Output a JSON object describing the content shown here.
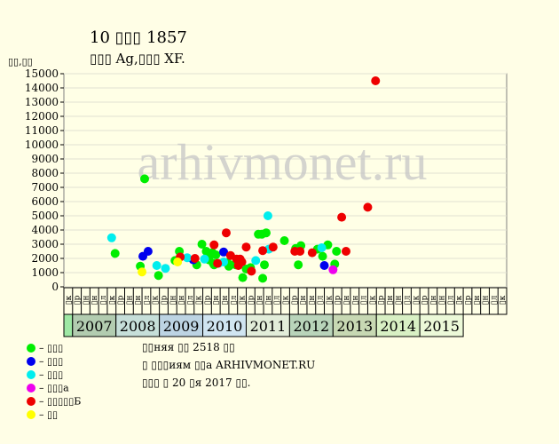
{
  "title": "10 ▯▯▯ 1857",
  "subtitle": "▯▯▯ Ag,▯▯▯ XF.",
  "y_unit": "▯▯,▯▯",
  "watermark": "arhivmonet.ru",
  "notes": [
    "▯▯няя ▯▯ 2518 ▯▯",
    "▯ ▯▯▯иям ▯▯а ARHIVMONET.RU",
    "▯▯▯ ▯ 20 ▯я 2017 ▯▯."
  ],
  "legend": [
    {
      "label": "– ▯▯▯",
      "color": "#00ee00"
    },
    {
      "label": "– ▯▯▯",
      "color": "#0000ee"
    },
    {
      "label": "– ▯▯▯",
      "color": "#00eeee"
    },
    {
      "label": "– ▯▯▯а",
      "color": "#ee00ee"
    },
    {
      "label": "– ▯▯▯▯▯Б",
      "color": "#ee0000"
    },
    {
      "label": "– ▯▯",
      "color": "#ffff00"
    }
  ],
  "chart_data": {
    "type": "scatter",
    "title": "10 ▯▯▯ 1857",
    "subtitle": "▯▯▯ Ag,▯▯▯ XF.",
    "ylabel": "▯▯,▯▯",
    "ylim": [
      0,
      15000
    ],
    "yticks": [
      0,
      1000,
      2000,
      3000,
      4000,
      5000,
      6000,
      7000,
      8000,
      9000,
      10000,
      11000,
      12000,
      13000,
      14000,
      15000
    ],
    "grid": true,
    "x_cells": [
      "▯к",
      "▯р",
      "▯н",
      "▯н",
      "▯л",
      "▯к",
      "▯р",
      "▯н",
      "▯н",
      "▯л",
      "▯к",
      "▯р",
      "▯н",
      "▯н",
      "▯л",
      "▯к",
      "▯р",
      "▯н",
      "▯н",
      "▯л",
      "▯к",
      "▯р",
      "▯н",
      "▯н",
      "▯л",
      "▯к",
      "▯р",
      "▯н",
      "▯н",
      "▯л",
      "▯к",
      "▯р",
      "▯н",
      "▯н",
      "▯л",
      "▯к",
      "▯р",
      "▯н",
      "▯н",
      "▯л",
      "▯к",
      "▯р",
      "▯н",
      "▯н",
      "▯л",
      "▯к",
      "▯р",
      "▯н",
      "▯н",
      "▯л",
      "▯к"
    ],
    "years": [
      {
        "label": "",
        "start": 0,
        "end": 1,
        "color": "#9ee8a4"
      },
      {
        "label": "2007",
        "start": 1,
        "end": 6,
        "color": "#b2ccb0"
      },
      {
        "label": "2008",
        "start": 6,
        "end": 11,
        "color": "#c6dfd9"
      },
      {
        "label": "2009",
        "start": 11,
        "end": 16,
        "color": "#bdd4e3"
      },
      {
        "label": "2010",
        "start": 16,
        "end": 21,
        "color": "#d0e5f1"
      },
      {
        "label": "2011",
        "start": 21,
        "end": 26,
        "color": "#e2edd9"
      },
      {
        "label": "2012",
        "start": 26,
        "end": 31,
        "color": "#b9d4ba"
      },
      {
        "label": "2013",
        "start": 31,
        "end": 36,
        "color": "#c7d8b3"
      },
      {
        "label": "2014",
        "start": 36,
        "end": 41,
        "color": "#d8f0c4"
      },
      {
        "label": "2015",
        "start": 41,
        "end": 46,
        "color": "#ecf9d8"
      }
    ],
    "series": [
      {
        "name": "▯▯▯",
        "color": "#00ee00",
        "points": [
          [
            5.9,
            2350
          ],
          [
            8.8,
            1450
          ],
          [
            9.3,
            7600
          ],
          [
            10.9,
            800
          ],
          [
            12.8,
            1850
          ],
          [
            13.3,
            2500
          ],
          [
            15.3,
            1550
          ],
          [
            15.9,
            3000
          ],
          [
            16.4,
            2500
          ],
          [
            16.7,
            1900
          ],
          [
            16.9,
            2300
          ],
          [
            17.1,
            2400
          ],
          [
            17.2,
            1650
          ],
          [
            17.3,
            1550
          ],
          [
            17.5,
            2250
          ],
          [
            18.8,
            1700
          ],
          [
            19.0,
            1450
          ],
          [
            19.2,
            1550
          ],
          [
            19.8,
            1550
          ],
          [
            20.6,
            650
          ],
          [
            21.0,
            1250
          ],
          [
            21.5,
            1350
          ],
          [
            22.4,
            3700
          ],
          [
            22.8,
            3700
          ],
          [
            22.9,
            600
          ],
          [
            23.1,
            1550
          ],
          [
            23.3,
            3800
          ],
          [
            25.4,
            3250
          ],
          [
            26.7,
            2700
          ],
          [
            27.0,
            1550
          ],
          [
            27.3,
            2900
          ],
          [
            29.2,
            2650
          ],
          [
            29.8,
            2150
          ],
          [
            30.4,
            2950
          ],
          [
            31.2,
            1600
          ],
          [
            31.4,
            2500
          ]
        ]
      },
      {
        "name": "▯▯▯",
        "color": "#0000ee",
        "points": [
          [
            9.1,
            2150
          ],
          [
            9.7,
            2500
          ],
          [
            14.9,
            1900
          ],
          [
            18.4,
            2450
          ],
          [
            30.0,
            1500
          ]
        ]
      },
      {
        "name": "▯▯▯",
        "color": "#00eeee",
        "points": [
          [
            5.5,
            3450
          ],
          [
            10.7,
            1500
          ],
          [
            11.7,
            1300
          ],
          [
            14.2,
            2050
          ],
          [
            16.2,
            1950
          ],
          [
            17.8,
            1650
          ],
          [
            18.4,
            1750
          ],
          [
            20.4,
            1700
          ],
          [
            22.1,
            1850
          ],
          [
            23.5,
            5000
          ],
          [
            23.6,
            2650
          ],
          [
            29.7,
            2750
          ]
        ]
      },
      {
        "name": "▯▯▯а",
        "color": "#ee00ee",
        "points": [
          [
            31.0,
            1200
          ]
        ]
      },
      {
        "name": "▯▯▯▯▯Б",
        "color": "#ee0000",
        "points": [
          [
            13.4,
            2100
          ],
          [
            15.1,
            2000
          ],
          [
            17.3,
            2950
          ],
          [
            17.7,
            1650
          ],
          [
            18.7,
            3800
          ],
          [
            19.2,
            2200
          ],
          [
            19.9,
            1950
          ],
          [
            20.1,
            1500
          ],
          [
            20.3,
            1950
          ],
          [
            20.5,
            1750
          ],
          [
            21.0,
            2800
          ],
          [
            21.6,
            1100
          ],
          [
            22.9,
            2550
          ],
          [
            24.1,
            2800
          ],
          [
            26.6,
            2500
          ],
          [
            27.2,
            2500
          ],
          [
            28.6,
            2400
          ],
          [
            32.0,
            4900
          ],
          [
            32.5,
            2500
          ],
          [
            35.0,
            5600
          ],
          [
            35.9,
            14500
          ]
        ]
      },
      {
        "name": "▯▯",
        "color": "#ffff00",
        "points": [
          [
            9.0,
            1050
          ],
          [
            13.1,
            1750
          ]
        ]
      }
    ]
  }
}
